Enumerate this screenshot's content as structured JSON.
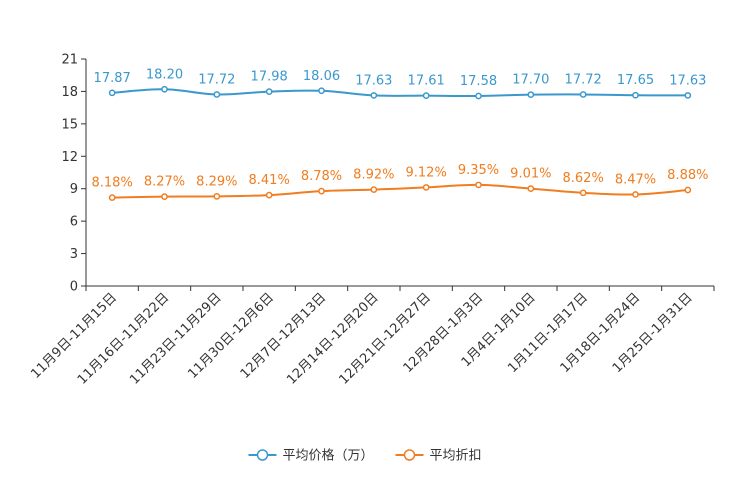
{
  "chart_data": {
    "type": "line",
    "categories": [
      "11月9日-11月15日",
      "11月16日-11月22日",
      "11月23日-11月29日",
      "11月30日-12月6日",
      "12月7日-12月13日",
      "12月14日-12月20日",
      "12月21日-12月27日",
      "12月28日-1月3日",
      "1月4日-1月10日",
      "1月11日-1月17日",
      "1月18日-1月24日",
      "1月25日-1月31日"
    ],
    "ylim": [
      0,
      21
    ],
    "yticks": [
      0,
      3,
      6,
      9,
      12,
      15,
      18,
      21
    ],
    "series": [
      {
        "name": "平均价格（万）",
        "color": "#3a98cc",
        "values": [
          17.87,
          18.2,
          17.72,
          17.98,
          18.06,
          17.63,
          17.61,
          17.58,
          17.7,
          17.72,
          17.65,
          17.63
        ],
        "labels": [
          "17.87",
          "18.20",
          "17.72",
          "17.98",
          "18.06",
          "17.63",
          "17.61",
          "17.58",
          "17.70",
          "17.72",
          "17.65",
          "17.63"
        ]
      },
      {
        "name": "平均折扣",
        "color": "#f07d1f",
        "values": [
          8.18,
          8.27,
          8.29,
          8.41,
          8.78,
          8.92,
          9.12,
          9.35,
          9.01,
          8.62,
          8.47,
          8.88
        ],
        "labels": [
          "8.18%",
          "8.27%",
          "8.29%",
          "8.41%",
          "8.78%",
          "8.92%",
          "9.12%",
          "9.35%",
          "9.01%",
          "8.62%",
          "8.47%",
          "8.88%"
        ]
      }
    ],
    "legend_position": "bottom-center"
  }
}
